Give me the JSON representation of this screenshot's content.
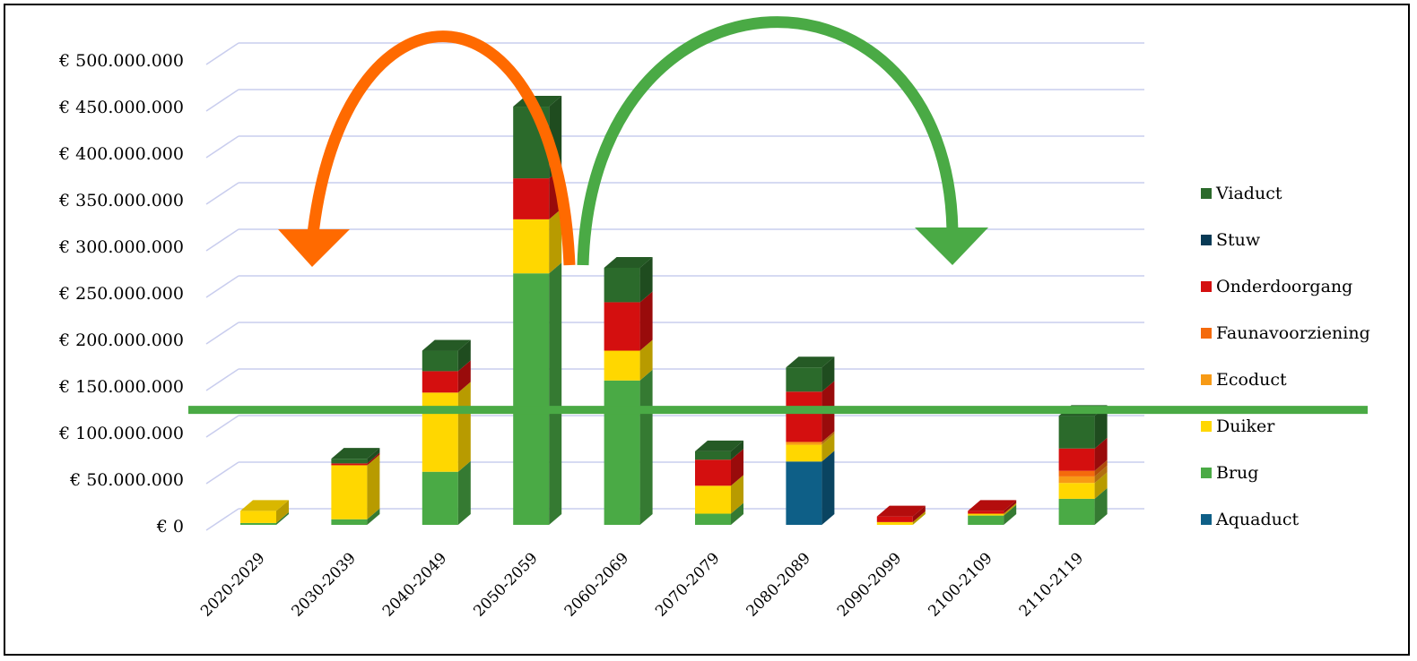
{
  "chart_data": {
    "type": "bar",
    "stacked": true,
    "style": "3d",
    "title": "",
    "xlabel": "",
    "ylabel": "",
    "ylim": [
      0,
      500000000
    ],
    "y_ticks": [
      0,
      50000000,
      100000000,
      150000000,
      200000000,
      250000000,
      300000000,
      350000000,
      400000000,
      450000000,
      500000000
    ],
    "y_tick_labels": [
      "€ 0",
      "€ 50.000.000",
      "€ 100.000.000",
      "€ 150.000.000",
      "€ 200.000.000",
      "€ 250.000.000",
      "€ 300.000.000",
      "€ 350.000.000",
      "€ 400.000.000",
      "€ 450.000.000",
      "€ 500.000.000"
    ],
    "grid": true,
    "legend_position": "right",
    "categories": [
      "2020-2029",
      "2030-2039",
      "2040-2049",
      "2050-2059",
      "2060-2069",
      "2070-2079",
      "2080-2089",
      "2090-2099",
      "2100-2109",
      "2110-2119"
    ],
    "series": [
      {
        "name": "Aquaduct",
        "color": "#0e5f87",
        "values": [
          0,
          0,
          0,
          0,
          0,
          0,
          68000000,
          0,
          0,
          0
        ]
      },
      {
        "name": "Brug",
        "color": "#4aaa45",
        "values": [
          2000000,
          6000000,
          57000000,
          270000000,
          155000000,
          12000000,
          0,
          0,
          10000000,
          28000000
        ]
      },
      {
        "name": "Duiker",
        "color": "#ffd700",
        "values": [
          13000000,
          58000000,
          85000000,
          58000000,
          32000000,
          30000000,
          18000000,
          3000000,
          2000000,
          17000000
        ]
      },
      {
        "name": "Ecoduct",
        "color": "#f79a15",
        "values": [
          0,
          0,
          0,
          0,
          0,
          0,
          3000000,
          0,
          0,
          7000000
        ]
      },
      {
        "name": "Faunavoorziening",
        "color": "#f46a0c",
        "values": [
          0,
          0,
          0,
          0,
          0,
          0,
          0,
          0,
          0,
          6000000
        ]
      },
      {
        "name": "Onderdoorgang",
        "color": "#d40f0f",
        "values": [
          0,
          2000000,
          23000000,
          44000000,
          52000000,
          28000000,
          54000000,
          6000000,
          3000000,
          24000000
        ]
      },
      {
        "name": "Stuw",
        "color": "#083a55",
        "values": [
          0,
          0,
          0,
          0,
          0,
          0,
          0,
          0,
          0,
          0
        ]
      },
      {
        "name": "Viaduct",
        "color": "#2b6a2b",
        "values": [
          0,
          5000000,
          22000000,
          77000000,
          37000000,
          9000000,
          26000000,
          0,
          0,
          35000000
        ]
      }
    ],
    "legend_order": [
      "Viaduct",
      "Stuw",
      "Onderdoorgang",
      "Faunavoorziening",
      "Ecoduct",
      "Duiker",
      "Brug",
      "Aquaduct"
    ],
    "annotations": {
      "threshold_value": 133000000,
      "threshold_color": "#4aaa45",
      "arrow_left_color": "#ff6a00",
      "arrow_right_color": "#4aaa45"
    }
  }
}
